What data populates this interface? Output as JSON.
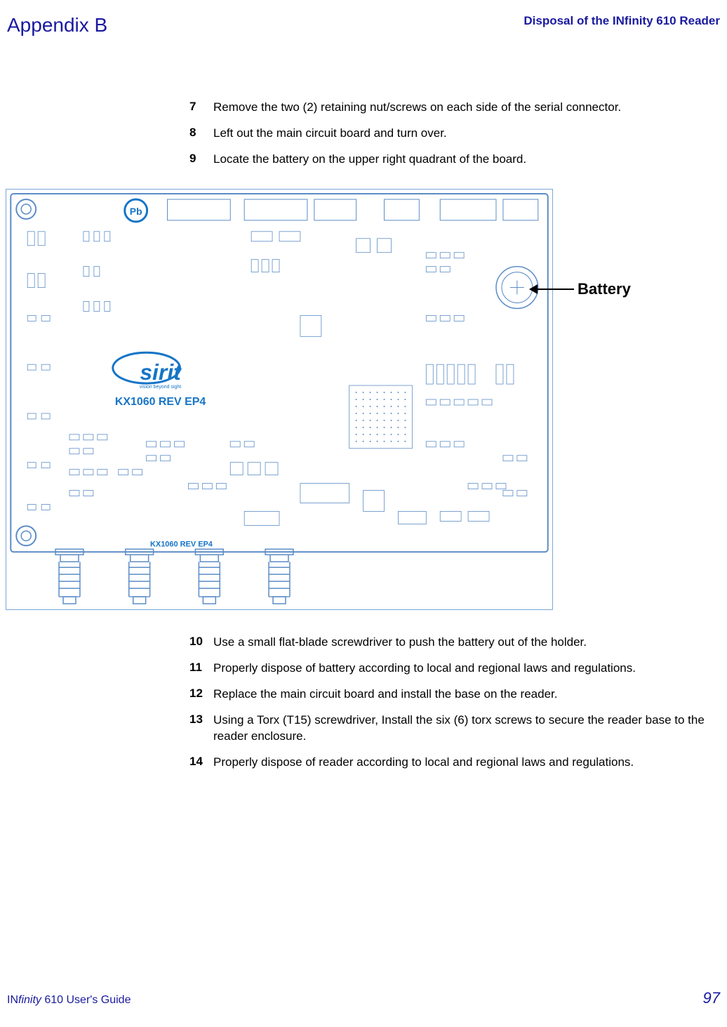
{
  "header": {
    "appendix": "Appendix B",
    "title": "Disposal of the INfinity 610 Reader"
  },
  "steps_top": [
    {
      "num": "7",
      "text": "Remove the two (2) retaining nut/screws on each side of the serial connector."
    },
    {
      "num": "8",
      "text": "Left out the main circuit board and turn over."
    },
    {
      "num": "9",
      "text": "Locate the battery on the upper right quadrant of the board."
    }
  ],
  "figure": {
    "battery_label": "Battery",
    "board": {
      "outline_color": "#5b8cc6",
      "text_color_main": "#1675c7",
      "text_color_small": "#1675c7",
      "logo_text": "sirit",
      "logo_tagline": "vision beyond sight",
      "rev_text_main": "KX1060  REV  EP4",
      "rev_text_small": "KX1060 REV  EP4",
      "pb_symbol": "Pb"
    }
  },
  "steps_bottom": [
    {
      "num": "10",
      "text": "Use a small flat-blade screwdriver to push the battery out of the holder."
    },
    {
      "num": "11",
      "text": "Properly dispose of battery according to local and regional laws and regulations."
    },
    {
      "num": "12",
      "text": "Replace the main circuit board and install the base on the reader."
    },
    {
      "num": "13",
      "text": "Using a Torx (T15) screwdriver, Install the six (6) torx screws to secure the reader base to the reader enclosure."
    },
    {
      "num": "14",
      "text": "Properly dispose of reader according to local and regional laws and regulations."
    }
  ],
  "footer": {
    "guide": "INfinity 610 User's Guide",
    "page": "97"
  }
}
